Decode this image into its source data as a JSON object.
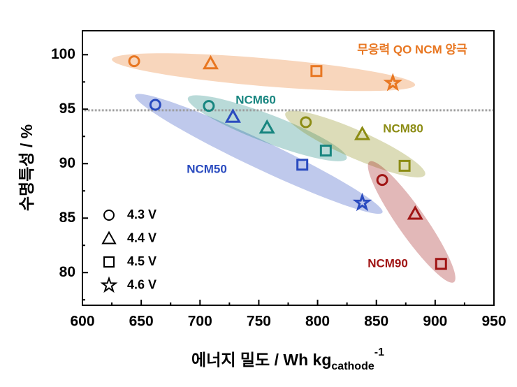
{
  "chart_data": {
    "type": "scatter",
    "y_label": "수명특성 / %",
    "x_label": {
      "text": "에너지 밀도 / Wh kg",
      "sub": "cathode",
      "sup": "-1"
    },
    "xlim": [
      600,
      950
    ],
    "ylim": [
      77,
      102.2
    ],
    "xticks": [
      600,
      650,
      700,
      750,
      800,
      850,
      900,
      950
    ],
    "yticks": [
      80,
      85,
      90,
      95,
      100
    ],
    "hline": 94.9,
    "series": [
      {
        "name": "무응력 QO NCM 양극",
        "color": "#e87722",
        "x": [
          644,
          709,
          799,
          864
        ],
        "values": [
          99.4,
          99.2,
          98.5,
          97.4
        ],
        "markers": [
          "circle",
          "triangle",
          "square",
          "star"
        ]
      },
      {
        "name": "NCM50",
        "color": "#2a4bbf",
        "x": [
          662,
          728,
          787,
          838
        ],
        "values": [
          95.4,
          94.3,
          89.9,
          86.4
        ],
        "markers": [
          "circle",
          "triangle",
          "square",
          "star"
        ]
      },
      {
        "name": "NCM60",
        "color": "#17857f",
        "x": [
          707.5,
          757,
          807
        ],
        "values": [
          95.3,
          93.3,
          91.2
        ],
        "markers": [
          "circle",
          "triangle",
          "square"
        ]
      },
      {
        "name": "NCM80",
        "color": "#8c8c14",
        "x": [
          790,
          838,
          874
        ],
        "values": [
          93.8,
          92.7,
          89.8
        ],
        "markers": [
          "circle",
          "triangle",
          "square"
        ]
      },
      {
        "name": "NCM90",
        "color": "#a01414",
        "x": [
          855,
          883,
          905
        ],
        "values": [
          88.5,
          85.4,
          80.8
        ],
        "markers": [
          "circle",
          "triangle",
          "square"
        ]
      }
    ],
    "marker_legend": [
      {
        "label": "4.3 V",
        "marker": "circle"
      },
      {
        "label": "4.4 V",
        "marker": "triangle"
      },
      {
        "label": "4.5 V",
        "marker": "square"
      },
      {
        "label": "4.6 V",
        "marker": "star"
      }
    ]
  }
}
